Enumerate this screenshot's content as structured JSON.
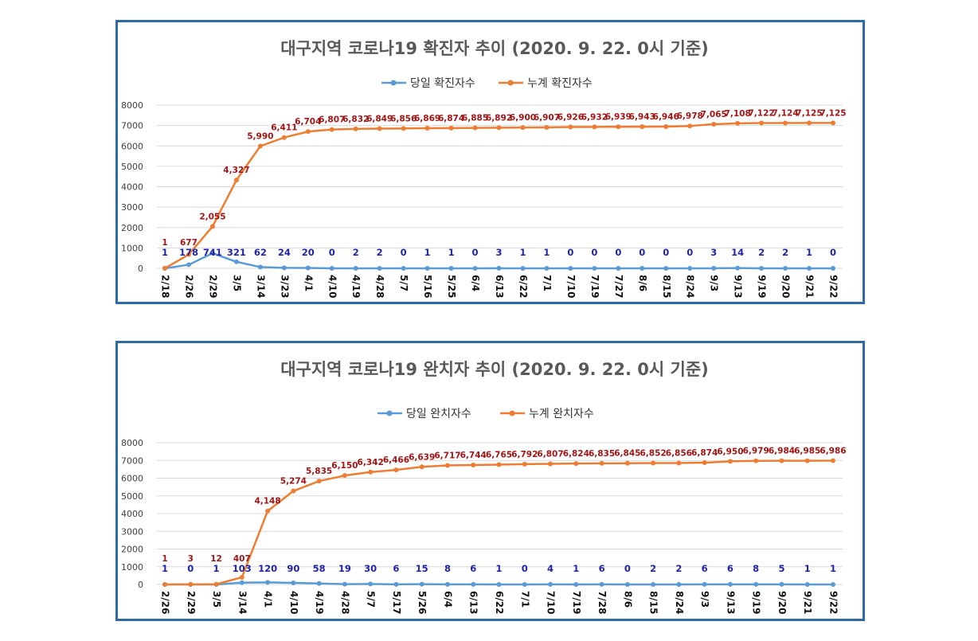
{
  "colors": {
    "daily": "#5b9bd5",
    "cumulative": "#ed7d31",
    "cum_label": "#a31515",
    "daily_label": "#1f24a8",
    "frame": "#2e6aa8"
  },
  "chart_data": [
    {
      "type": "line",
      "title": "대구지역 코로나19  확진자 추이 (2020. 9. 22. 0시 기준)",
      "ylim": [
        0,
        8000
      ],
      "yticks": [
        0,
        1000,
        2000,
        3000,
        4000,
        5000,
        6000,
        7000,
        8000
      ],
      "categories": [
        "2/18",
        "2/26",
        "2/29",
        "3/5",
        "3/14",
        "3/23",
        "4/1",
        "4/10",
        "4/19",
        "4/28",
        "5/7",
        "5/16",
        "5/25",
        "6/4",
        "6/13",
        "6/22",
        "7/1",
        "7/10",
        "7/19",
        "7/27",
        "8/6",
        "8/15",
        "8/24",
        "9/3",
        "9/13",
        "9/19",
        "9/20",
        "9/21",
        "9/22"
      ],
      "series": [
        {
          "name": "당일 확진자수",
          "values": [
            1,
            178,
            741,
            321,
            62,
            24,
            20,
            0,
            2,
            2,
            0,
            1,
            1,
            0,
            3,
            1,
            1,
            0,
            0,
            0,
            0,
            0,
            0,
            3,
            14,
            2,
            2,
            1,
            0
          ],
          "labels": [
            "1",
            "178",
            "741",
            "321",
            "62",
            "24",
            "20",
            "0",
            "2",
            "2",
            "0",
            "1",
            "1",
            "0",
            "3",
            "1",
            "1",
            "0",
            "0",
            "0",
            "0",
            "0",
            "0",
            "3",
            "14",
            "2",
            "2",
            "1",
            "0"
          ]
        },
        {
          "name": "누계 확진자수",
          "values": [
            1,
            677,
            2055,
            4327,
            5990,
            6411,
            6704,
            6807,
            6832,
            6849,
            6856,
            6869,
            6874,
            6885,
            6892,
            6900,
            6907,
            6926,
            6932,
            6939,
            6943,
            6946,
            6978,
            7065,
            7108,
            7122,
            7124,
            7125,
            7125
          ],
          "labels": [
            "1",
            "677",
            "2,055",
            "4,327",
            "5,990",
            "6,411",
            "6,704",
            "6,807",
            "6,832",
            "6,849",
            "6,856",
            "6,869",
            "6,874",
            "6,885",
            "6,892",
            "6,900",
            "6,907",
            "6,926",
            "6,932",
            "6,939",
            "6,943",
            "6,946",
            "6,978",
            "7,065",
            "7,108",
            "7,122",
            "7,124",
            "7,125",
            "7,125"
          ]
        }
      ]
    },
    {
      "type": "line",
      "title": "대구지역 코로나19  완치자 추이 (2020. 9. 22. 0시 기준)",
      "ylim": [
        0,
        8000
      ],
      "yticks": [
        0,
        1000,
        2000,
        3000,
        4000,
        5000,
        6000,
        7000,
        8000
      ],
      "categories": [
        "2/26",
        "2/29",
        "3/5",
        "3/14",
        "4/1",
        "4/10",
        "4/19",
        "4/28",
        "5/7",
        "5/17",
        "5/26",
        "6/4",
        "6/13",
        "6/22",
        "7/1",
        "7/10",
        "7/19",
        "7/28",
        "8/6",
        "8/15",
        "8/24",
        "9/3",
        "9/13",
        "9/19",
        "9/20",
        "9/21",
        "9/22"
      ],
      "series": [
        {
          "name": "당일 완치자수",
          "values": [
            1,
            0,
            1,
            103,
            120,
            90,
            58,
            19,
            30,
            6,
            15,
            8,
            6,
            1,
            0,
            4,
            1,
            6,
            0,
            2,
            2,
            6,
            6,
            8,
            5,
            1,
            1
          ],
          "labels": [
            "1",
            "0",
            "1",
            "103",
            "120",
            "90",
            "58",
            "19",
            "30",
            "6",
            "15",
            "8",
            "6",
            "1",
            "0",
            "4",
            "1",
            "6",
            "0",
            "2",
            "2",
            "6",
            "6",
            "8",
            "5",
            "1",
            "1"
          ]
        },
        {
          "name": "누계 완치자수",
          "values": [
            1,
            3,
            12,
            407,
            4148,
            5274,
            5835,
            6150,
            6342,
            6466,
            6639,
            6717,
            6744,
            6765,
            6792,
            6807,
            6824,
            6835,
            6845,
            6852,
            6856,
            6874,
            6950,
            6979,
            6984,
            6985,
            6986
          ],
          "labels": [
            "1",
            "3",
            "12",
            "407",
            "4,148",
            "5,274",
            "5,835",
            "6,150",
            "6,342",
            "6,466",
            "6,639",
            "6,717",
            "6,744",
            "6,765",
            "6,792",
            "6,807",
            "6,824",
            "6,835",
            "6,845",
            "6,852",
            "6,856",
            "6,874",
            "6,950",
            "6,979",
            "6,984",
            "6,985",
            "6,986"
          ]
        }
      ]
    }
  ]
}
